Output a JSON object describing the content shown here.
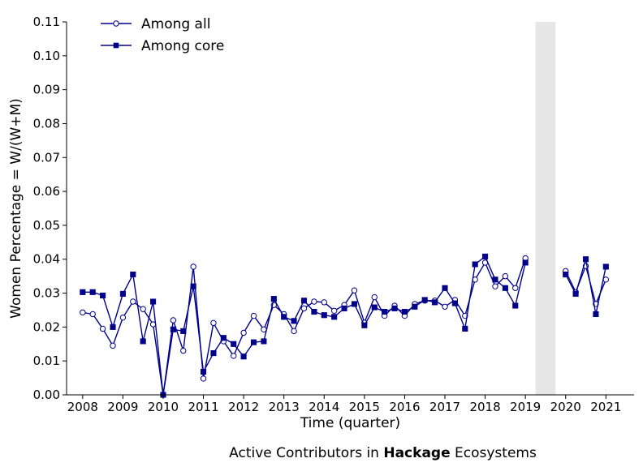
{
  "chart_data": {
    "type": "line",
    "title": "",
    "caption": {
      "prefix": "Active Contributors in ",
      "bold": "Hackage",
      "suffix": " Ecosystems"
    },
    "xlabel": "Time (quarter)",
    "ylabel": "Women Percentage = W/(W+M)",
    "xlim": [
      2007.6,
      2021.7
    ],
    "ylim": [
      0,
      0.11
    ],
    "xticks": [
      2008,
      2009,
      2010,
      2011,
      2012,
      2013,
      2014,
      2015,
      2016,
      2017,
      2018,
      2019,
      2020,
      2021
    ],
    "xtick_labels": [
      "2008",
      "2009",
      "2010",
      "2011",
      "2012",
      "2013",
      "2014",
      "2015",
      "2016",
      "2017",
      "2018",
      "2019",
      "2020",
      "2021"
    ],
    "yticks": [
      0,
      0.01,
      0.02,
      0.03,
      0.04,
      0.05,
      0.06,
      0.07,
      0.08,
      0.09,
      0.1,
      0.11
    ],
    "ytick_labels": [
      "0.00",
      "0.01",
      "0.02",
      "0.03",
      "0.04",
      "0.05",
      "0.06",
      "0.07",
      "0.08",
      "0.09",
      "0.10",
      "0.11"
    ],
    "shaded_region": {
      "x": [
        2019.25,
        2019.75
      ],
      "color": "#e6e6e6"
    },
    "legend_position": "top-left",
    "grid": false,
    "x": [
      2008.0,
      2008.25,
      2008.5,
      2008.75,
      2009.0,
      2009.25,
      2009.5,
      2009.75,
      2010.0,
      2010.25,
      2010.5,
      2010.75,
      2011.0,
      2011.25,
      2011.5,
      2011.75,
      2012.0,
      2012.25,
      2012.5,
      2012.75,
      2013.0,
      2013.25,
      2013.5,
      2013.75,
      2014.0,
      2014.25,
      2014.5,
      2014.75,
      2015.0,
      2015.25,
      2015.5,
      2015.75,
      2016.0,
      2016.25,
      2016.5,
      2016.75,
      2017.0,
      2017.25,
      2017.5,
      2017.75,
      2018.0,
      2018.25,
      2018.5,
      2018.75,
      2019.0,
      2020.0,
      2020.25,
      2020.5,
      2020.75,
      2021.0
    ],
    "series": [
      {
        "name": "Among all",
        "marker": "circle",
        "color": "#00008b",
        "values": [
          0.0243,
          0.0238,
          0.0195,
          0.0145,
          0.0228,
          0.0275,
          0.0253,
          0.0208,
          0.0,
          0.022,
          0.013,
          0.0378,
          0.0048,
          0.0212,
          0.0158,
          0.0115,
          0.0183,
          0.0233,
          0.0193,
          0.0265,
          0.0238,
          0.0188,
          0.0255,
          0.0275,
          0.0273,
          0.0248,
          0.0265,
          0.0308,
          0.0213,
          0.0288,
          0.0233,
          0.0263,
          0.0233,
          0.0268,
          0.0278,
          0.0278,
          0.026,
          0.028,
          0.0233,
          0.034,
          0.039,
          0.032,
          0.035,
          0.0315,
          0.0403,
          0.0365,
          0.0303,
          0.038,
          0.0268,
          0.034
        ],
        "gap_after_index": 44
      },
      {
        "name": "Among core",
        "marker": "square",
        "color": "#00008b",
        "values": [
          0.0303,
          0.0303,
          0.0293,
          0.02,
          0.0298,
          0.0355,
          0.0158,
          0.0275,
          0.0,
          0.0193,
          0.0188,
          0.032,
          0.0068,
          0.0123,
          0.0168,
          0.015,
          0.0113,
          0.0155,
          0.0158,
          0.0283,
          0.023,
          0.0218,
          0.0278,
          0.0245,
          0.0235,
          0.023,
          0.0255,
          0.0268,
          0.0205,
          0.0258,
          0.0245,
          0.0255,
          0.0245,
          0.026,
          0.028,
          0.0273,
          0.0315,
          0.027,
          0.0195,
          0.0385,
          0.0408,
          0.034,
          0.0315,
          0.0263,
          0.039,
          0.0355,
          0.0298,
          0.04,
          0.0238,
          0.0378
        ],
        "gap_after_index": 44
      }
    ]
  }
}
